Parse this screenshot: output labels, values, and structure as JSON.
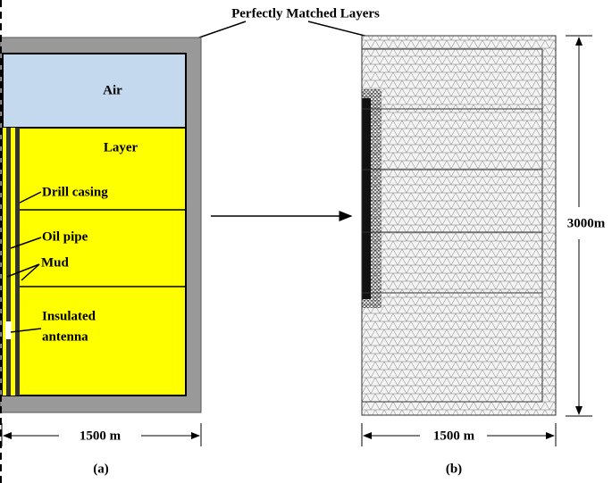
{
  "title": "Perfectly Matched Layers",
  "panel_a": {
    "air": "Air",
    "layer": "Layer",
    "drill_casing": "Drill casing",
    "oil_pipe": "Oil pipe",
    "mud": "Mud",
    "antenna_line1": "Insulated",
    "antenna_line2": "antenna",
    "width": "1500 m",
    "caption": "(a)"
  },
  "panel_b": {
    "width": "1500 m",
    "height": "3000m",
    "caption": "(b)"
  }
}
